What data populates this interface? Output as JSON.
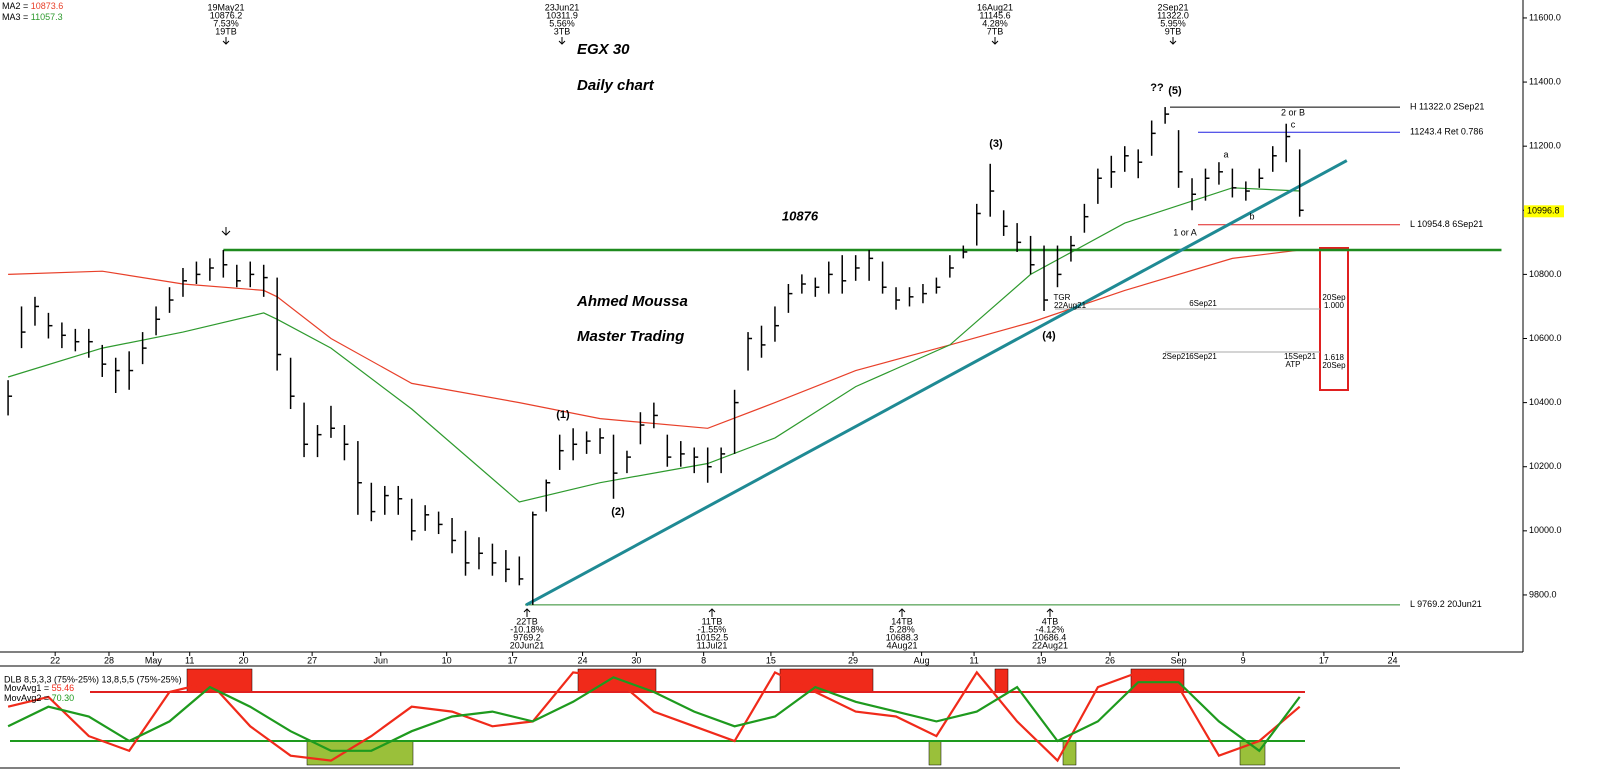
{
  "chart_data": {
    "type": "ohlc",
    "title": "EGX 30",
    "subtitle": "Daily chart",
    "author": "Ahmed Moussa",
    "author_subtitle": "Master Trading",
    "xlim": [
      -0.6,
      112.6
    ],
    "xticks": [
      {
        "value": 3.5,
        "label": "22"
      },
      {
        "value": 7.5,
        "label": "28"
      },
      {
        "value": 10.8,
        "label": "May"
      },
      {
        "value": 13.5,
        "label": "11"
      },
      {
        "value": 17.5,
        "label": "20"
      },
      {
        "value": 22.6,
        "label": "27"
      },
      {
        "value": 27.7,
        "label": "Jun"
      },
      {
        "value": 32.6,
        "label": "10"
      },
      {
        "value": 37.5,
        "label": "17"
      },
      {
        "value": 42.7,
        "label": "24"
      },
      {
        "value": 46.7,
        "label": "30"
      },
      {
        "value": 51.7,
        "label": "8"
      },
      {
        "value": 56.7,
        "label": "15"
      },
      {
        "value": 62.8,
        "label": "29"
      },
      {
        "value": 67.9,
        "label": "Aug"
      },
      {
        "value": 71.8,
        "label": "11"
      },
      {
        "value": 76.8,
        "label": "19"
      },
      {
        "value": 81.9,
        "label": "26"
      },
      {
        "value": 87,
        "label": "Sep"
      },
      {
        "value": 91.8,
        "label": "9"
      },
      {
        "value": 97.8,
        "label": "17"
      },
      {
        "value": 102.9,
        "label": "24"
      }
    ],
    "ylim": [
      9622,
      11656
    ],
    "yticks": [
      {
        "value": 9800,
        "label": "9800.0"
      },
      {
        "value": 10000,
        "label": "10000.0"
      },
      {
        "value": 10200,
        "label": "10200.0"
      },
      {
        "value": 10400,
        "label": "10400.0"
      },
      {
        "value": 10600,
        "label": "10600.0"
      },
      {
        "value": 10800,
        "label": "10800.0"
      },
      {
        "value": 11000,
        "label": "11000.0"
      },
      {
        "value": 11200,
        "label": "11200.0"
      },
      {
        "value": 11400,
        "label": "11400.0"
      },
      {
        "value": 11600,
        "label": "11600.0"
      }
    ],
    "bar_color": "#000000",
    "high": [
      10470,
      10700,
      10730,
      10680,
      10650,
      10630,
      10630,
      10580,
      10540,
      10560,
      10620,
      10700,
      10760,
      10820,
      10840,
      10850,
      10876,
      10830,
      10840,
      10830,
      10790,
      10540,
      10400,
      10330,
      10390,
      10330,
      10280,
      10150,
      10140,
      10140,
      10100,
      10080,
      10060,
      10040,
      10000,
      9980,
      9960,
      9940,
      9920,
      10060,
      10160,
      10300,
      10320,
      10310,
      10320,
      10300,
      10250,
      10370,
      10400,
      10300,
      10280,
      10260,
      10260,
      10260,
      10440,
      10620,
      10640,
      10700,
      10770,
      10800,
      10790,
      10840,
      10860,
      10860,
      10876,
      10840,
      10760,
      10760,
      10770,
      10790,
      10860,
      10890,
      11020,
      11145,
      11000,
      10960,
      10920,
      10890,
      10890,
      10920,
      11020,
      11130,
      11170,
      11200,
      11190,
      11280,
      11322,
      11250,
      11100,
      11130,
      11150,
      11130,
      11090,
      11130,
      11200,
      11270,
      11190
    ],
    "low": [
      10360,
      10570,
      10640,
      10600,
      10570,
      10560,
      10540,
      10480,
      10430,
      10440,
      10520,
      10610,
      10680,
      10730,
      10770,
      10780,
      10790,
      10760,
      10760,
      10730,
      10500,
      10380,
      10230,
      10230,
      10290,
      10220,
      10050,
      10030,
      10050,
      10050,
      9970,
      10000,
      9990,
      9930,
      9860,
      9880,
      9860,
      9840,
      9830,
      9769,
      10060,
      10190,
      10220,
      10240,
      10240,
      10100,
      10180,
      10270,
      10320,
      10200,
      10200,
      10180,
      10150,
      10180,
      10240,
      10500,
      10540,
      10590,
      10680,
      10740,
      10730,
      10740,
      10740,
      10780,
      10780,
      10740,
      10690,
      10700,
      10710,
      10740,
      10790,
      10850,
      10890,
      10980,
      10920,
      10870,
      10800,
      10686,
      10760,
      10840,
      10930,
      11020,
      11070,
      11120,
      11100,
      11170,
      11270,
      11070,
      11000,
      11030,
      11080,
      11040,
      11030,
      11070,
      11120,
      11150,
      10980
    ],
    "close": [
      10420,
      10620,
      10700,
      10640,
      10610,
      10590,
      10590,
      10520,
      10500,
      10500,
      10570,
      10660,
      10720,
      10780,
      10800,
      10820,
      10830,
      10780,
      10800,
      10790,
      10550,
      10420,
      10270,
      10300,
      10320,
      10270,
      10150,
      10060,
      10110,
      10100,
      10000,
      10050,
      10020,
      9970,
      9900,
      9930,
      9900,
      9880,
      9850,
      10050,
      10150,
      10250,
      10270,
      10280,
      10290,
      10180,
      10230,
      10330,
      10360,
      10230,
      10240,
      10230,
      10200,
      10240,
      10400,
      10600,
      10580,
      10640,
      10740,
      10770,
      10760,
      10800,
      10780,
      10820,
      10850,
      10760,
      10720,
      10730,
      10740,
      10760,
      10820,
      10870,
      10990,
      11060,
      10950,
      10900,
      10830,
      10720,
      10800,
      10890,
      10980,
      11100,
      11120,
      11170,
      11150,
      11240,
      11300,
      11120,
      11050,
      11100,
      11120,
      11070,
      11060,
      11100,
      11170,
      11230,
      11000
    ],
    "legend_sep": " = ",
    "moving_averages": {
      "x": [
        0,
        7,
        13,
        19,
        20,
        24,
        30,
        38,
        44,
        52,
        57,
        63,
        70,
        76,
        83,
        91,
        96
      ],
      "series": [
        {
          "name": "MA2",
          "color": "#e8402a",
          "last": 10873.6,
          "values": [
            10800,
            10810,
            10770,
            10750,
            10730,
            10600,
            10460,
            10400,
            10350,
            10320,
            10400,
            10500,
            10580,
            10650,
            10750,
            10850,
            10876
          ]
        },
        {
          "name": "MA3",
          "color": "#2e9a2e",
          "last": 11057.3,
          "values": [
            10480,
            10570,
            10620,
            10680,
            10660,
            10570,
            10380,
            10090,
            10150,
            10210,
            10290,
            10450,
            10580,
            10800,
            10960,
            11070,
            11060
          ]
        }
      ]
    },
    "trendline": {
      "color": "#1f8a94",
      "x": [
        38.5,
        99.5
      ],
      "values": [
        9769,
        11155
      ]
    },
    "resistance": {
      "value": 10876,
      "label": "10876",
      "color": "#1e8a1e",
      "x": [
        16,
        111
      ]
    },
    "levels": [
      {
        "label": "H 11322.0 2Sep21",
        "value": 11322.0,
        "color": "#000000"
      },
      {
        "label": "11243.4 Ret 0.786",
        "value": 11243.4,
        "color": "#2020e0"
      },
      {
        "label": "L 10954.8 6Sep21",
        "value": 10954.8,
        "color": "#e02020"
      },
      {
        "label": "L 9769.2 20Jun21",
        "value": 9769.2,
        "color": "#2a8a2a"
      }
    ],
    "last_price": 10996.8,
    "annotations_top": [
      {
        "lines": [
          "19May21",
          "10876.2",
          "7.53%",
          "19TB"
        ]
      },
      {
        "lines": [
          "23Jun21",
          "10311.9",
          "5.56%",
          "3TB"
        ]
      },
      {
        "lines": [
          "16Aug21",
          "11145.6",
          "4.28%",
          "7TB"
        ]
      },
      {
        "lines": [
          "2Sep21",
          "11322.0",
          "5.95%",
          "9TB"
        ]
      }
    ],
    "annotations_bottom": [
      {
        "lines": [
          "22TB",
          "-10.18%",
          "9769.2",
          "20Jun21"
        ]
      },
      {
        "lines": [
          "11TB",
          "-1.55%",
          "10152.5",
          "11Jul21"
        ]
      },
      {
        "lines": [
          "14TB",
          "5.28%",
          "10688.3",
          "4Aug21"
        ]
      },
      {
        "lines": [
          "4TB",
          "-4.12%",
          "10686.4",
          "22Aug21"
        ]
      }
    ],
    "wave_labels": [
      "(1)",
      "(2)",
      "(3)",
      "(4)",
      "??",
      "(5)",
      "2 or B",
      "c",
      "a",
      "b",
      "1 or A"
    ],
    "small_labels": [
      "TGR",
      "22Aug21",
      "6Sep21",
      "2Sep21",
      "6Sep21",
      "15Sep21",
      "ATP"
    ],
    "projection_labels": [
      "20Sep",
      "1.000",
      "1.618",
      "20Sep"
    ],
    "oscillator": {
      "title": "DLB 8,5,3,3 (75%-25%) 13,8,5,5 (75%-25%)",
      "ylim": [
        0,
        100
      ],
      "levels": [
        {
          "value": 75,
          "color": "#e02020"
        },
        {
          "value": 25,
          "color": "#1e9a1e"
        }
      ],
      "x": [
        0,
        3,
        6,
        9,
        12,
        15,
        18,
        21,
        24,
        27,
        30,
        33,
        36,
        39,
        42,
        45,
        48,
        51,
        54,
        57,
        60,
        63,
        66,
        69,
        72,
        75,
        78,
        81,
        84,
        87,
        90,
        93,
        96
      ],
      "series": [
        {
          "name": "MovAvg1",
          "color": "#f02a1a",
          "last": 55.46,
          "last_label": "55.46",
          "values": [
            60,
            70,
            30,
            15,
            75,
            85,
            40,
            10,
            5,
            30,
            60,
            55,
            40,
            45,
            95,
            90,
            55,
            40,
            25,
            95,
            75,
            55,
            50,
            30,
            95,
            45,
            5,
            80,
            95,
            80,
            10,
            25,
            60
          ]
        },
        {
          "name": "MovAvg2",
          "color": "#1e9a1e",
          "last": 70.3,
          "last_label": "70.30",
          "values": [
            40,
            60,
            50,
            25,
            45,
            80,
            60,
            35,
            15,
            15,
            35,
            50,
            55,
            45,
            65,
            90,
            75,
            55,
            40,
            50,
            80,
            65,
            55,
            45,
            55,
            80,
            25,
            45,
            85,
            85,
            45,
            15,
            70
          ]
        }
      ]
    }
  }
}
